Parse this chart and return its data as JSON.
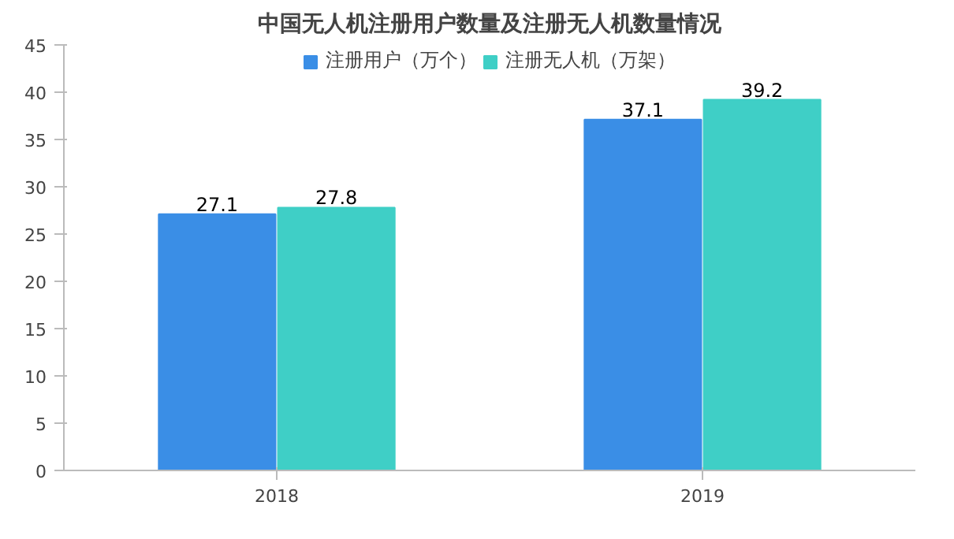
{
  "chart_data": {
    "type": "bar",
    "title": "中国无人机注册用户数量及注册无人机数量情况",
    "categories": [
      "2018",
      "2019"
    ],
    "series": [
      {
        "name": "注册用户（万个）",
        "color": "#3a8ee6",
        "values": [
          27.1,
          37.1
        ]
      },
      {
        "name": "注册无人机（万架）",
        "color": "#3fcfc6",
        "values": [
          27.8,
          39.2
        ]
      }
    ],
    "ylim": [
      0,
      45
    ],
    "yticks": [
      0,
      5,
      10,
      15,
      20,
      25,
      30,
      35,
      40,
      45
    ],
    "grid": false,
    "legend": "top",
    "data_labels": true
  }
}
